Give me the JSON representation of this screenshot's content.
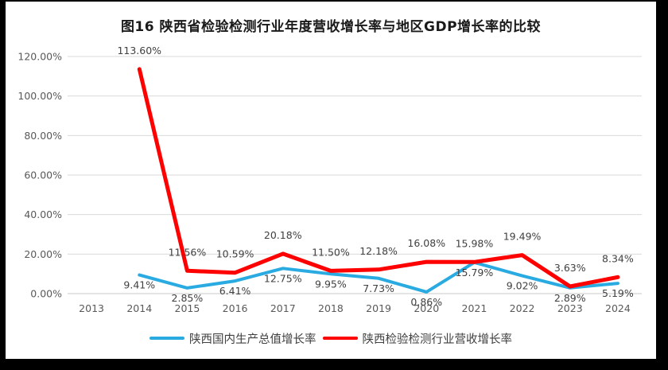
{
  "title": "图16  陕西省检验检测行业年度营收增长率与地区GDP增长率的比较",
  "colors": {
    "background": "#FFFFFF",
    "frame": "#000000",
    "gridline": "#DADADA",
    "axis_text": "#595959",
    "data_label_text": "#404040",
    "gdp_line": "#29ABE2",
    "industry_line": "#FF0000"
  },
  "legend": [
    {
      "name": "陕西国内生产总值增长率",
      "color": "#29ABE2"
    },
    {
      "name": "陕西检验检测行业营收增长率",
      "color": "#FF0000"
    }
  ],
  "chart_data": {
    "type": "line",
    "title": "图16  陕西省检验检测行业年度营收增长率与地区GDP增长率的比较",
    "categories": [
      "2013",
      "2014",
      "2015",
      "2016",
      "2017",
      "2018",
      "2019",
      "2020",
      "2021",
      "2022",
      "2023",
      "2024"
    ],
    "series": [
      {
        "name": "陕西国内生产总值增长率",
        "color": "#29ABE2",
        "stroke_width": 4,
        "label_position": "below",
        "values": [
          null,
          9.41,
          2.85,
          6.41,
          12.75,
          9.95,
          7.73,
          0.86,
          15.79,
          9.02,
          2.89,
          5.19
        ],
        "labels": [
          null,
          "9.41%",
          "2.85%",
          "6.41%",
          "12.75%",
          "9.95%",
          "7.73%",
          "0.86%",
          "15.79%",
          "9.02%",
          "2.89%",
          "5.19%"
        ]
      },
      {
        "name": "陕西检验检测行业营收增长率",
        "color": "#FF0000",
        "stroke_width": 5,
        "label_position": "above",
        "values": [
          null,
          113.6,
          11.56,
          10.59,
          20.18,
          11.5,
          12.18,
          16.08,
          15.98,
          19.49,
          3.63,
          8.34
        ],
        "labels": [
          null,
          "113.60%",
          "11.56%",
          "10.59%",
          "20.18%",
          "11.50%",
          "12.18%",
          "16.08%",
          "15.98%",
          "19.49%",
          "3.63%",
          "8.34%"
        ]
      }
    ],
    "ylim": [
      0,
      120
    ],
    "ytick_step": 20,
    "ytick_labels": [
      "0.00%",
      "20.00%",
      "40.00%",
      "60.00%",
      "80.00%",
      "100.00%",
      "120.00%"
    ],
    "grid": true,
    "legend_position": "bottom"
  }
}
